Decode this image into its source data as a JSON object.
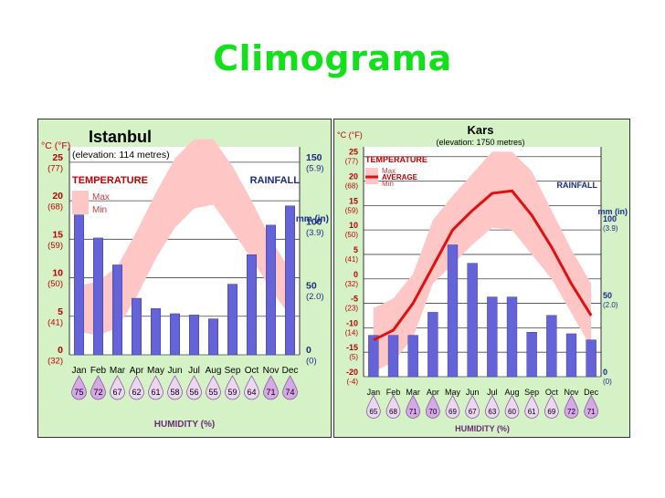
{
  "slide_title": "Climograma",
  "chart_data": [
    {
      "type": "bar",
      "city": "Istanbul",
      "elevation": "(elevation: 114 metres)",
      "temp_unit_label": "°C (°F)",
      "temperature_label": "TEMPERATURE",
      "legend_max": "Max",
      "legend_min": "Min",
      "legend_average": "",
      "rainfall_label": "RAINFALL",
      "rain_unit_label": "mm (in)",
      "humidity_label": "HUMIDITY (%)",
      "categories": [
        "Jan",
        "Feb",
        "Mar",
        "Apr",
        "May",
        "Jun",
        "Jul",
        "Aug",
        "Sep",
        "Oct",
        "Nov",
        "Dec"
      ],
      "temp_ticks": [
        {
          "c": "25",
          "f": "(77)",
          "v": 25
        },
        {
          "c": "20",
          "f": "(68)",
          "v": 20
        },
        {
          "c": "15",
          "f": "(59)",
          "v": 15
        },
        {
          "c": "10",
          "f": "(50)",
          "v": 10
        },
        {
          "c": "5",
          "f": "(41)",
          "v": 5
        },
        {
          "c": "0",
          "f": "(32)",
          "v": 0
        }
      ],
      "rain_ticks": [
        {
          "mm": "150",
          "inch": "(5.9)",
          "v": 150
        },
        {
          "mm": "100",
          "inch": "(3.9)",
          "v": 100
        },
        {
          "mm": "50",
          "inch": "(2.0)",
          "v": 50
        },
        {
          "mm": "0",
          "inch": "(0)",
          "v": 0
        }
      ],
      "temp_range": [
        0,
        27
      ],
      "rain_range": [
        0,
        162
      ],
      "rainfall_mm": [
        109,
        91,
        70,
        44,
        36,
        32,
        31,
        28,
        55,
        78,
        101,
        116
      ],
      "temp_max": [
        9,
        9.5,
        11.5,
        16,
        21,
        25.5,
        28,
        28,
        24.5,
        20,
        15,
        11
      ],
      "temp_min": [
        3,
        2.5,
        3.5,
        7.5,
        12.5,
        16.5,
        19,
        19.5,
        16,
        12.5,
        8.5,
        5
      ],
      "temp_avg": [],
      "humidity": [
        "75",
        "72",
        "67",
        "62",
        "61",
        "58",
        "56",
        "55",
        "59",
        "64",
        "71",
        "74"
      ]
    },
    {
      "type": "bar",
      "city": "Kars",
      "elevation": "(elevation: 1750 metres)",
      "temp_unit_label": "°C (°F)",
      "temperature_label": "TEMPERATURE",
      "legend_max": "Max",
      "legend_min": "Min",
      "legend_average": "AVERAGE",
      "rainfall_label": "RAINFALL",
      "rain_unit_label": "mm (in)",
      "humidity_label": "HUMIDITY (%)",
      "categories": [
        "Jan",
        "Feb",
        "Mar",
        "Apr",
        "May",
        "Jun",
        "Jul",
        "Aug",
        "Sep",
        "Oct",
        "Nov",
        "Dec"
      ],
      "temp_ticks": [
        {
          "c": "25",
          "f": "(77)",
          "v": 25
        },
        {
          "c": "20",
          "f": "(68)",
          "v": 20
        },
        {
          "c": "15",
          "f": "(59)",
          "v": 15
        },
        {
          "c": "10",
          "f": "(50)",
          "v": 10
        },
        {
          "c": "5",
          "f": "(41)",
          "v": 5
        },
        {
          "c": "0",
          "f": "(32)",
          "v": 0
        },
        {
          "c": "-5",
          "f": "(23)",
          "v": -5
        },
        {
          "c": "-10",
          "f": "(14)",
          "v": -10
        },
        {
          "c": "-15",
          "f": "(5)",
          "v": -15
        },
        {
          "c": "-20",
          "f": "(-4)",
          "v": -20
        }
      ],
      "rain_ticks": [
        {
          "mm": "100",
          "inch": "(3.9)",
          "v": 100
        },
        {
          "mm": "50",
          "inch": "(2.0)",
          "v": 50
        },
        {
          "mm": "0",
          "inch": "(0)",
          "v": 0
        }
      ],
      "temp_range": [
        -20,
        27
      ],
      "rain_range": [
        0,
        150
      ],
      "rainfall_mm": [
        27,
        27,
        27,
        42,
        86,
        74,
        52,
        52,
        29,
        40,
        28,
        24
      ],
      "temp_max": [
        -6,
        -4,
        1,
        12,
        17,
        21.5,
        26,
        26,
        22,
        14,
        6,
        -1
      ],
      "temp_min": [
        -19,
        -17,
        -12,
        -1,
        3,
        7,
        10.5,
        10,
        5,
        0,
        -7,
        -14
      ],
      "temp_avg": [
        -12.5,
        -10.5,
        -5,
        2.5,
        10,
        14,
        17.5,
        18,
        13,
        6.5,
        -1,
        -7.5
      ],
      "humidity": [
        "65",
        "68",
        "71",
        "70",
        "69",
        "67",
        "63",
        "60",
        "61",
        "69",
        "72",
        "71"
      ]
    }
  ]
}
